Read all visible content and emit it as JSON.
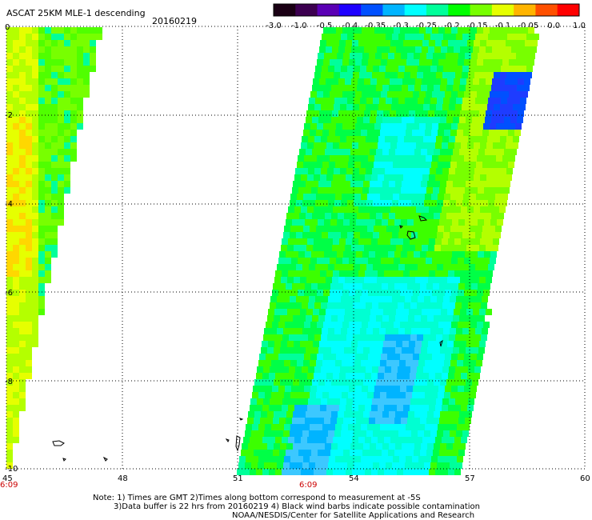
{
  "title": "ASCAT 25KM MLE-1 descending",
  "date": "20160219",
  "colorbar": {
    "tick_labels": [
      "-3.0",
      "-1.0",
      "-0.5",
      "-0.4",
      "-0.35",
      "-0.3",
      "-0.25",
      "-0.2",
      "-0.15",
      "-0.1",
      "-0.05",
      "0.0",
      "1.0"
    ],
    "colors": [
      "#1a0014",
      "#3c0050",
      "#5a00b4",
      "#1e00ff",
      "#0050ff",
      "#00b4ff",
      "#00ffff",
      "#00ff9a",
      "#00ff00",
      "#78ff00",
      "#e6ff00",
      "#ffb400",
      "#ff5000",
      "#ff0000"
    ]
  },
  "axes": {
    "x_ticks": [
      "45",
      "48",
      "51",
      "54",
      "57",
      "60"
    ],
    "y_ticks": [
      "0",
      "-2",
      "-4",
      "-6",
      "-8",
      "-10"
    ],
    "time_labels": [
      "6:09",
      "6:09"
    ]
  },
  "notes": {
    "line1": "Note: 1) Times are GMT 2)Times along bottom correspond to measurement at -5S",
    "line2": "3)Data buffer is 22 hrs from 20160219 4) Black wind barbs indicate possible contamination",
    "line3": "NOAA/NESDIS/Center for Satellite Applications and Research"
  }
}
